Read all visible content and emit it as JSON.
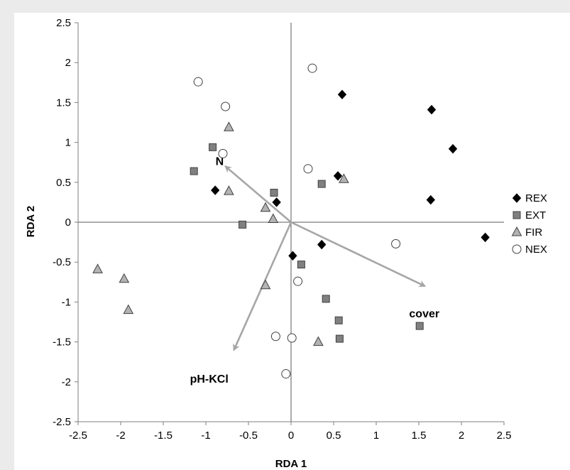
{
  "chart_data": {
    "type": "scatter",
    "xlabel": "RDA 1",
    "ylabel": "RDA 2",
    "xlim": [
      -2.5,
      2.5
    ],
    "ylim": [
      -2.5,
      2.5
    ],
    "x_ticks": [
      "-2.5",
      "-2",
      "-1.5",
      "-1",
      "-0.5",
      "0",
      "0.5",
      "1",
      "1.5",
      "2",
      "2.5"
    ],
    "y_ticks": [
      "2.5",
      "2",
      "1.5",
      "1",
      "0.5",
      "0",
      "-0.5",
      "-1",
      "-1.5",
      "-2",
      "-2.5"
    ],
    "grid": false,
    "legend_position": "right",
    "series": [
      {
        "name": "REX",
        "marker": "diamond",
        "color": "#000000",
        "points": [
          [
            0.6,
            1.6
          ],
          [
            1.65,
            1.41
          ],
          [
            1.9,
            0.92
          ],
          [
            0.55,
            0.58
          ],
          [
            1.64,
            0.28
          ],
          [
            2.28,
            -0.19
          ],
          [
            -0.89,
            0.4
          ],
          [
            -0.17,
            0.25
          ],
          [
            0.02,
            -0.42
          ],
          [
            0.36,
            -0.28
          ]
        ]
      },
      {
        "name": "EXT",
        "marker": "square",
        "color": "#808080",
        "points": [
          [
            -0.92,
            0.94
          ],
          [
            -1.14,
            0.64
          ],
          [
            -0.2,
            0.37
          ],
          [
            0.36,
            0.48
          ],
          [
            -0.57,
            -0.03
          ],
          [
            0.12,
            -0.53
          ],
          [
            0.41,
            -0.96
          ],
          [
            0.56,
            -1.23
          ],
          [
            0.57,
            -1.46
          ],
          [
            1.51,
            -1.3
          ]
        ]
      },
      {
        "name": "FIR",
        "marker": "triangle",
        "color": "#b3b3b3",
        "points": [
          [
            -0.73,
            1.19
          ],
          [
            -0.73,
            0.39
          ],
          [
            -0.3,
            0.18
          ],
          [
            -0.21,
            0.04
          ],
          [
            0.62,
            0.54
          ],
          [
            -2.27,
            -0.59
          ],
          [
            -1.96,
            -0.71
          ],
          [
            -1.91,
            -1.1
          ],
          [
            -0.3,
            -0.79
          ],
          [
            0.32,
            -1.5
          ]
        ]
      },
      {
        "name": "NEX",
        "marker": "circle",
        "color": "#ffffff",
        "points": [
          [
            -1.09,
            1.76
          ],
          [
            -0.77,
            1.45
          ],
          [
            -0.8,
            0.86
          ],
          [
            0.25,
            1.93
          ],
          [
            0.2,
            0.67
          ],
          [
            1.23,
            -0.27
          ],
          [
            0.08,
            -0.74
          ],
          [
            -0.18,
            -1.43
          ],
          [
            0.01,
            -1.45
          ],
          [
            -0.06,
            -1.9
          ]
        ]
      }
    ],
    "vectors": [
      {
        "label": "N",
        "x": -0.77,
        "y": 0.7
      },
      {
        "label": "cover",
        "x": 1.57,
        "y": -0.8
      },
      {
        "label": "pH-KCl",
        "x": -0.67,
        "y": -1.6
      }
    ]
  }
}
